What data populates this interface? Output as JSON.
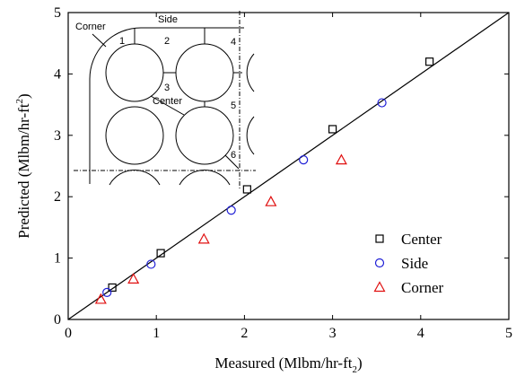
{
  "chart_data": {
    "type": "scatter",
    "xlabel": "Measured (Mlbm/hr-ft",
    "xlabel_sub": "2",
    "xlabel_close": ")",
    "ylabel": "Predicted (Mlbm/hr-ft",
    "ylabel_sup": "2",
    "ylabel_close": ")",
    "xlim": [
      0,
      5
    ],
    "ylim": [
      0,
      5
    ],
    "xticks": [
      "0",
      "1",
      "2",
      "3",
      "4",
      "5"
    ],
    "yticks": [
      "0",
      "1",
      "2",
      "3",
      "4",
      "5"
    ],
    "reference_line": {
      "x": [
        0,
        5
      ],
      "y": [
        0,
        5
      ]
    },
    "legend_position": "bottom-right",
    "series": [
      {
        "name": "Center",
        "marker": "square",
        "color": "#000000",
        "x": [
          0.5,
          1.05,
          2.03,
          3.0,
          4.1
        ],
        "y": [
          0.52,
          1.08,
          2.12,
          3.1,
          4.2
        ]
      },
      {
        "name": "Side",
        "marker": "circle",
        "color": "#1f1fd6",
        "x": [
          0.44,
          0.94,
          1.85,
          2.67,
          3.56
        ],
        "y": [
          0.44,
          0.9,
          1.78,
          2.6,
          3.53
        ]
      },
      {
        "name": "Corner",
        "marker": "triangle",
        "color": "#e01010",
        "x": [
          0.37,
          0.74,
          1.54,
          2.3,
          3.1
        ],
        "y": [
          0.33,
          0.66,
          1.31,
          1.92,
          2.6
        ]
      }
    ]
  },
  "inset": {
    "corner_label": "Corner",
    "side_label": "Side",
    "center_label": "Center",
    "gap_labels": [
      "1",
      "2",
      "3",
      "4",
      "5",
      "6"
    ]
  }
}
